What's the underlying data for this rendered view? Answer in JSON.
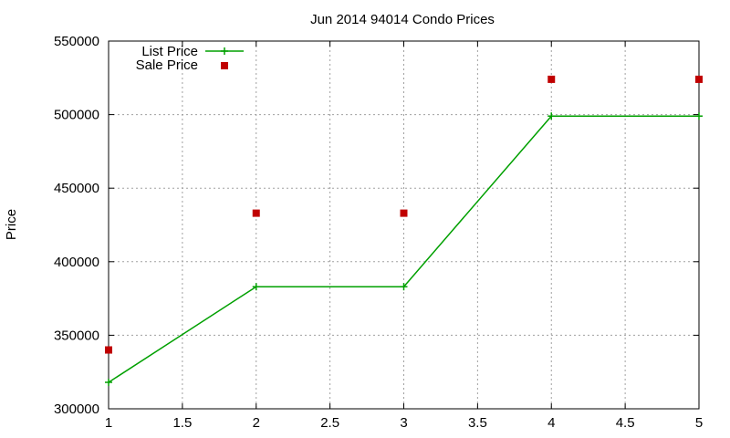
{
  "chart_data": {
    "type": "line",
    "title": "Jun 2014 94014 Condo Prices",
    "xlabel": "",
    "ylabel": "Price",
    "xlim": [
      1,
      5
    ],
    "ylim": [
      300000,
      550000
    ],
    "x_ticks": [
      "1",
      "1.5",
      "2",
      "2.5",
      "3",
      "3.5",
      "4",
      "4.5",
      "5"
    ],
    "y_ticks": [
      "300000",
      "350000",
      "400000",
      "450000",
      "500000",
      "550000"
    ],
    "grid": true,
    "legend": "top-left",
    "x": [
      1,
      2,
      3,
      4,
      5
    ],
    "series": [
      {
        "name": "List Price",
        "style": "line-cross",
        "color": "#00a000",
        "values": [
          318000,
          383000,
          383000,
          499000,
          499000
        ]
      },
      {
        "name": "Sale Price",
        "style": "square-points",
        "color": "#c00000",
        "values": [
          340000,
          433000,
          433000,
          524000,
          524000
        ]
      }
    ]
  }
}
